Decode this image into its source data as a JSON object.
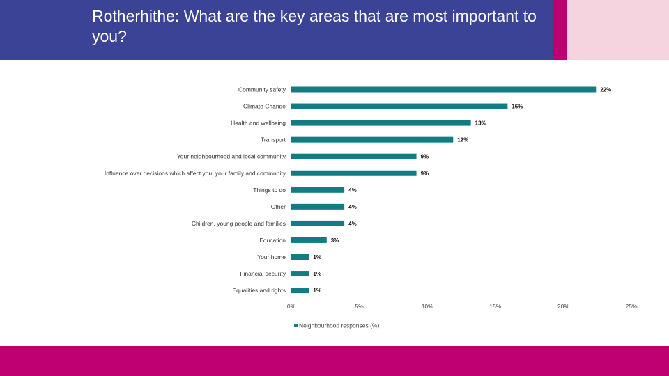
{
  "slide": {
    "title": "Rotherhithe: What are the key areas that are most important to you?",
    "colors": {
      "header": "#3b4397",
      "accent_magenta": "#be0071",
      "accent_pink": "#f5d3df",
      "footer": "#be0071",
      "bar": "#127c84"
    }
  },
  "chart_data": {
    "type": "bar",
    "orientation": "horizontal",
    "categories": [
      "Community safety",
      "Climate Change",
      "Health and wellbeing",
      "Transport",
      "Your neighbourhood and local community",
      "Influence over decisions which affect you, your family and community",
      "Things to do",
      "Other",
      "Children, young people and families",
      "Education",
      "Your home",
      "Financial security",
      "Equalities and rights"
    ],
    "series": [
      {
        "name": "Neighbourhood responses (%)",
        "values": [
          22.4,
          15.9,
          13.2,
          11.9,
          9.2,
          9.2,
          3.9,
          3.9,
          3.9,
          2.6,
          1.3,
          1.3,
          1.3
        ],
        "labels": [
          "22%",
          "16%",
          "13%",
          "12%",
          "9%",
          "9%",
          "4%",
          "4%",
          "4%",
          "3%",
          "1%",
          "1%",
          "1%"
        ]
      }
    ],
    "xlim": [
      0,
      25
    ],
    "xticks": [
      0,
      5,
      10,
      15,
      20,
      25
    ],
    "xtick_labels": [
      "0%",
      "5%",
      "10%",
      "15%",
      "20%",
      "25%"
    ],
    "grid": false,
    "legend": "bottom"
  }
}
